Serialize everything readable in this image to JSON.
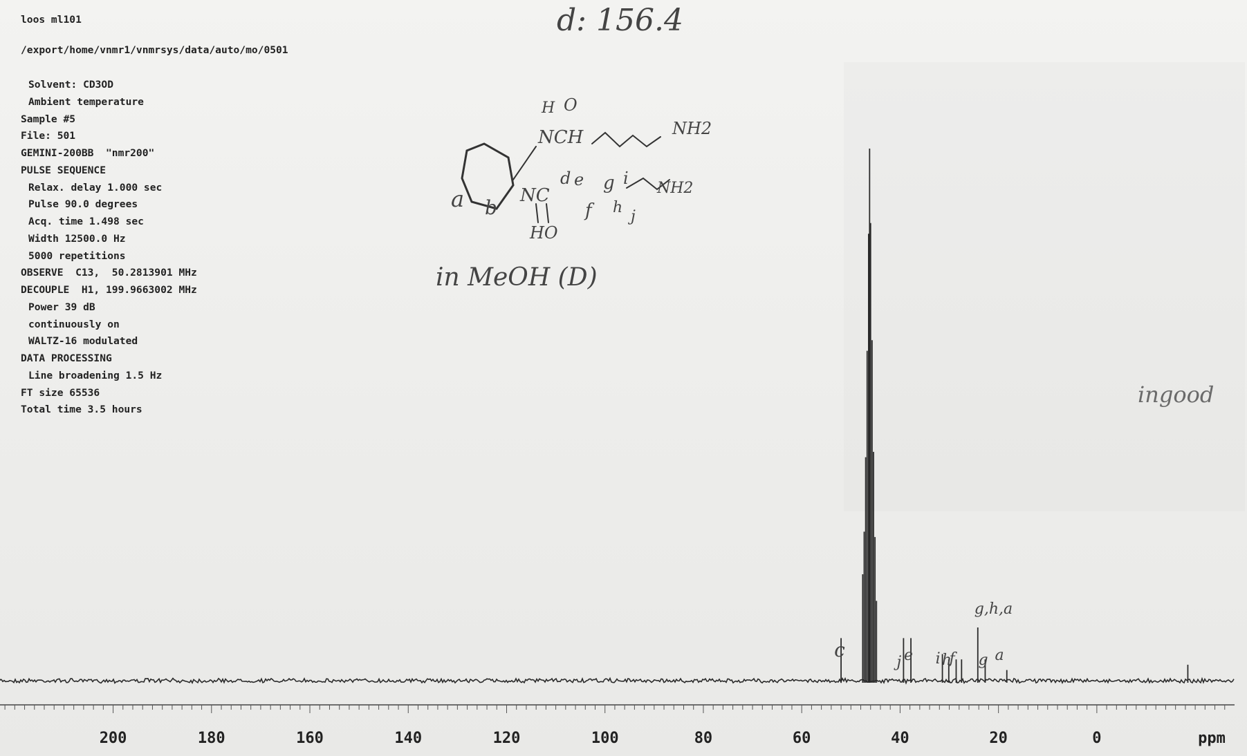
{
  "header": {
    "title_line": "loos ml101",
    "path": "/export/home/vnmr1/vnmrsys/data/auto/mo/0501"
  },
  "parameters": [
    {
      "text": "Solvent: CD3OD",
      "indent": true
    },
    {
      "text": "Ambient temperature",
      "indent": true
    },
    {
      "text": "Sample #5",
      "indent": false
    },
    {
      "text": "File: 501",
      "indent": false
    },
    {
      "text": "GEMINI-200BB  \"nmr200\"",
      "indent": false
    },
    {
      "text": "PULSE SEQUENCE",
      "indent": false
    },
    {
      "text": "Relax. delay 1.000 sec",
      "indent": true
    },
    {
      "text": "Pulse 90.0 degrees",
      "indent": true
    },
    {
      "text": "Acq. time 1.498 sec",
      "indent": true
    },
    {
      "text": "Width 12500.0 Hz",
      "indent": true
    },
    {
      "text": "5000 repetitions",
      "indent": true
    },
    {
      "text": "OBSERVE  C13,  50.2813901 MHz",
      "indent": false
    },
    {
      "text": "DECOUPLE  H1, 199.9663002 MHz",
      "indent": false
    },
    {
      "text": "Power 39 dB",
      "indent": true
    },
    {
      "text": "continuously on",
      "indent": true
    },
    {
      "text": "WALTZ-16 modulated",
      "indent": true
    },
    {
      "text": "DATA PROCESSING",
      "indent": false
    },
    {
      "text": "Line broadening 1.5 Hz",
      "indent": true
    },
    {
      "text": "FT size 65536",
      "indent": false
    },
    {
      "text": "Total time 3.5 hours",
      "indent": false
    }
  ],
  "handwriting": {
    "top_note": "d: 156.4",
    "solvent_note": "in MeOH (D)",
    "side_note": "ingood",
    "structure_labels": {
      "nh2_top": "NH2",
      "nh2_mid": "NH2",
      "h_top": "H",
      "o_top": "O",
      "nc_top": "NCH",
      "a": "a",
      "b": "b",
      "nc_mid": "NC",
      "d": "d",
      "e": "e",
      "g": "g",
      "i": "i",
      "f": "f",
      "h": "h",
      "j": "j",
      "ho": "HO"
    }
  },
  "chart_data": {
    "type": "line",
    "title": "",
    "xlabel": "ppm",
    "ylabel": "",
    "xlim": [
      223,
      -28
    ],
    "x_reversed": true,
    "tick_labels": [
      "200",
      "180",
      "160",
      "140",
      "120",
      "100",
      "80",
      "60",
      "40",
      "20",
      "0"
    ],
    "tick_values": [
      200,
      180,
      160,
      140,
      120,
      100,
      80,
      60,
      40,
      20,
      0
    ],
    "minor_tick_step": 2,
    "color": "#2a2a2a",
    "peaks": [
      {
        "ppm": 52.0,
        "height": 0.08
      },
      {
        "ppm": 47.6,
        "height": 0.2
      },
      {
        "ppm": 47.3,
        "height": 0.28
      },
      {
        "ppm": 47.0,
        "height": 0.42
      },
      {
        "ppm": 46.7,
        "height": 0.62
      },
      {
        "ppm": 46.4,
        "height": 0.84
      },
      {
        "ppm": 46.2,
        "height": 1.0
      },
      {
        "ppm": 46.0,
        "height": 0.86
      },
      {
        "ppm": 45.7,
        "height": 0.64
      },
      {
        "ppm": 45.4,
        "height": 0.43
      },
      {
        "ppm": 45.1,
        "height": 0.27
      },
      {
        "ppm": 44.8,
        "height": 0.15
      },
      {
        "ppm": 39.3,
        "height": 0.08
      },
      {
        "ppm": 37.8,
        "height": 0.08
      },
      {
        "ppm": 31.4,
        "height": 0.05
      },
      {
        "ppm": 30.1,
        "height": 0.04
      },
      {
        "ppm": 28.6,
        "height": 0.04
      },
      {
        "ppm": 27.5,
        "height": 0.04
      },
      {
        "ppm": 24.2,
        "height": 0.1
      },
      {
        "ppm": 22.7,
        "height": 0.04
      },
      {
        "ppm": 18.3,
        "height": 0.02
      },
      {
        "ppm": -18.5,
        "height": 0.03
      }
    ],
    "peak_labels": [
      {
        "text": "c",
        "ppm": 52.0
      },
      {
        "text": "j",
        "ppm": 39.3
      },
      {
        "text": "e",
        "ppm": 37.8
      },
      {
        "text": "i",
        "ppm": 31.4
      },
      {
        "text": "h",
        "ppm": 30.1
      },
      {
        "text": "f",
        "ppm": 28.6
      },
      {
        "text": "g,h,a",
        "ppm": 24.2
      },
      {
        "text": "g",
        "ppm": 22.7
      },
      {
        "text": "a",
        "ppm": 21.0
      }
    ],
    "grid": false
  }
}
